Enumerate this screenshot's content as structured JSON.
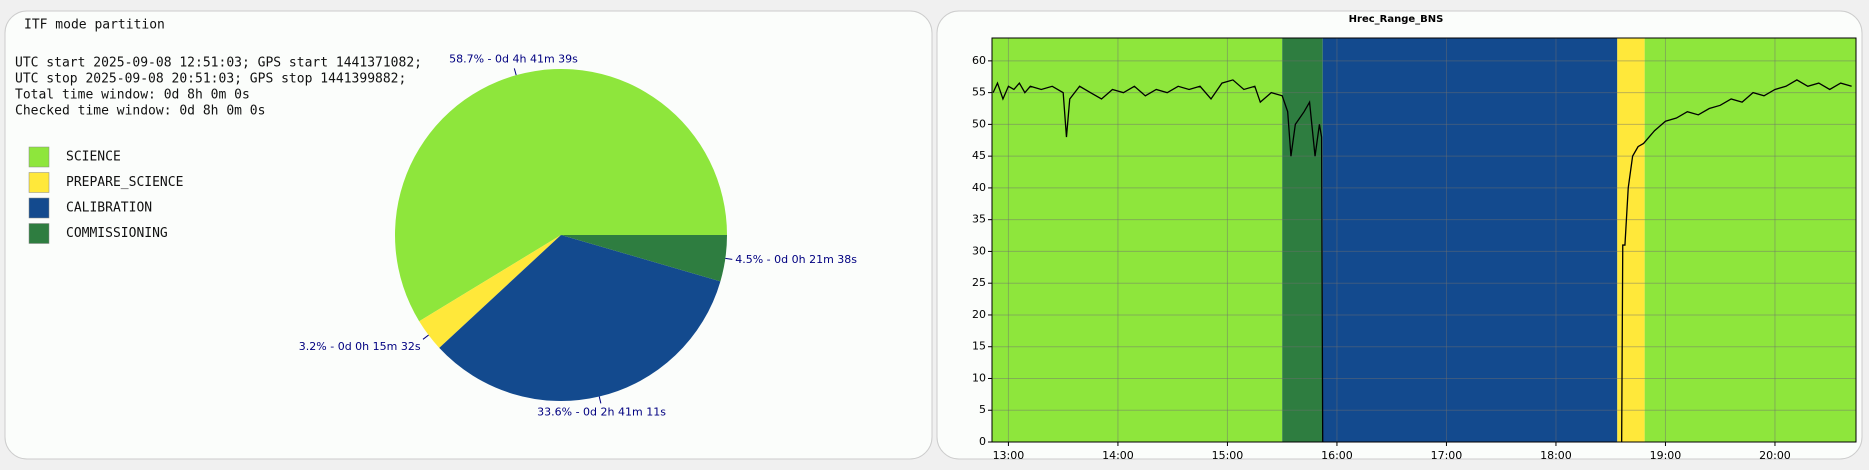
{
  "chart_data": [
    {
      "type": "pie",
      "title": "ITF mode partition",
      "notes": [
        "UTC start 2025-09-08 12:51:03; GPS start 1441371082;",
        "UTC stop 2025-09-08 20:51:03; GPS stop 1441399882;",
        "Total time window: 0d 8h 0m 0s",
        "Checked time window: 0d 8h 0m 0s"
      ],
      "categories": [
        "SCIENCE",
        "PREPARE_SCIENCE",
        "CALIBRATION",
        "COMMISSIONING"
      ],
      "values": [
        58.7,
        3.2,
        33.6,
        4.5
      ],
      "value_labels": [
        "58.7% - 0d 4h 41m 39s",
        "3.2% - 0d 0h 15m 32s",
        "33.6% - 0d 2h 41m 11s",
        "4.5% - 0d 0h 21m 38s"
      ],
      "colors": [
        "#8ee63c",
        "#ffe83a",
        "#134a8e",
        "#2e7d40"
      ]
    },
    {
      "type": "line",
      "title": "Hrec_Range_BNS",
      "bands": [
        {
          "start": 12.85,
          "end": 15.5,
          "color": "#8ee63c"
        },
        {
          "start": 15.5,
          "end": 15.87,
          "color": "#2e7d40"
        },
        {
          "start": 15.87,
          "end": 18.56,
          "color": "#134a8e"
        },
        {
          "start": 18.56,
          "end": 18.81,
          "color": "#ffe83a"
        },
        {
          "start": 18.81,
          "end": 20.74,
          "color": "#8ee63c"
        }
      ],
      "x": [
        12.86,
        12.9,
        12.95,
        13.0,
        13.05,
        13.1,
        13.15,
        13.2,
        13.3,
        13.4,
        13.5,
        13.53,
        13.56,
        13.65,
        13.75,
        13.85,
        13.95,
        14.05,
        14.15,
        14.25,
        14.35,
        14.45,
        14.55,
        14.65,
        14.75,
        14.85,
        14.95,
        15.05,
        15.15,
        15.25,
        15.3,
        15.4,
        15.5,
        15.55,
        15.58,
        15.62,
        15.7,
        15.75,
        15.8,
        15.84,
        15.86,
        15.87,
        17.0,
        18.6,
        18.61,
        18.63,
        18.66,
        18.7,
        18.75,
        18.8,
        18.9,
        19.0,
        19.1,
        19.2,
        19.3,
        19.4,
        19.5,
        19.6,
        19.7,
        19.8,
        19.9,
        20.0,
        20.1,
        20.2,
        20.3,
        20.4,
        20.5,
        20.6,
        20.7
      ],
      "series": [
        {
          "color": "#000000",
          "values": [
            55,
            56.5,
            54,
            56,
            55.5,
            56.5,
            55,
            56,
            55.5,
            56,
            55,
            48,
            54,
            56,
            55,
            54,
            55.5,
            55,
            56,
            54.5,
            55.5,
            55,
            56,
            55.5,
            56,
            54,
            56.5,
            57,
            55.5,
            56,
            53.5,
            55,
            54.5,
            52,
            45,
            50,
            52,
            53.5,
            45,
            50,
            48,
            0,
            null,
            0,
            31,
            31,
            40,
            45,
            46.5,
            47,
            49,
            50.5,
            51,
            52,
            51.5,
            52.5,
            53,
            54,
            53.5,
            55,
            54.5,
            55.5,
            56,
            57,
            56,
            56.5,
            55.5,
            56.5,
            56
          ]
        }
      ],
      "xlim": [
        12.85,
        20.74
      ],
      "ylim": [
        0,
        63.6
      ],
      "xticks": [
        {
          "value": 13,
          "label": "13:00"
        },
        {
          "value": 14,
          "label": "14:00"
        },
        {
          "value": 15,
          "label": "15:00"
        },
        {
          "value": 16,
          "label": "16:00"
        },
        {
          "value": 17,
          "label": "17:00"
        },
        {
          "value": 18,
          "label": "18:00"
        },
        {
          "value": 19,
          "label": "19:00"
        },
        {
          "value": 20,
          "label": "20:00"
        }
      ],
      "yticks": [
        0,
        5,
        10,
        15,
        20,
        25,
        30,
        35,
        40,
        45,
        50,
        55,
        60
      ],
      "grid": true
    }
  ]
}
